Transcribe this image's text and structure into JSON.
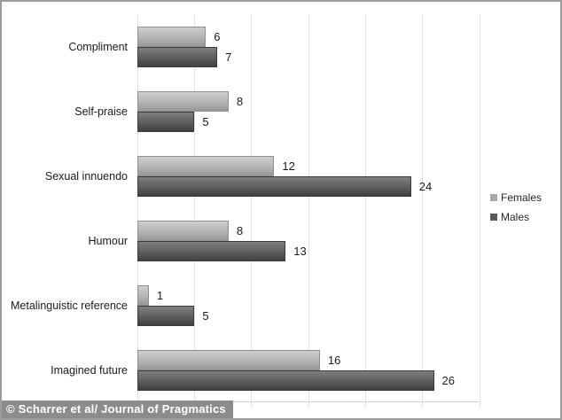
{
  "chart_data": {
    "type": "bar",
    "orientation": "horizontal",
    "title": "",
    "categories": [
      "Compliment",
      "Self-praise",
      "Sexual innuendo",
      "Humour",
      "Metalinguistic reference",
      "Imagined future"
    ],
    "series": [
      {
        "name": "Females",
        "values": [
          6,
          8,
          12,
          8,
          1,
          16
        ],
        "color": "#a8a8a8"
      },
      {
        "name": "Males",
        "values": [
          7,
          5,
          24,
          13,
          5,
          26
        ],
        "color": "#595959"
      }
    ],
    "xlim": [
      0,
      30
    ],
    "gridline_step": 5,
    "grid": true,
    "data_labels": true,
    "legend_position": "right"
  },
  "legend": {
    "items": [
      {
        "label": "Females",
        "color": "#a8a8a8"
      },
      {
        "label": "Males",
        "color": "#595959"
      }
    ]
  },
  "footer": {
    "credit": "© Scharrer et al/ Journal of Pragmatics"
  },
  "colors": {
    "background": "#ffffff",
    "frame_border": "#9c9c9c",
    "gridline": "#dde3ec",
    "females_bar": "#a8a8a8",
    "males_bar": "#595959",
    "credit_background": "#8c8c8c",
    "credit_text": "#ffffff"
  }
}
